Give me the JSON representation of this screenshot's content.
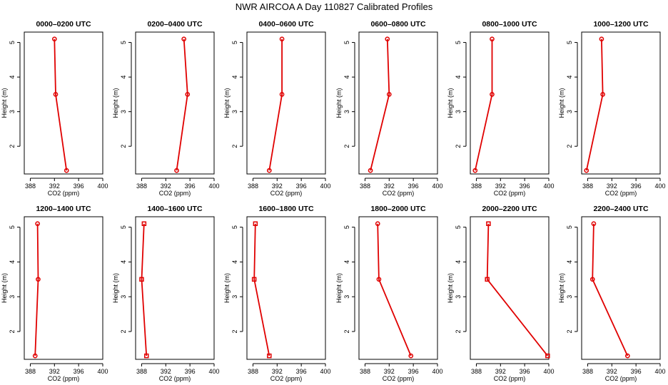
{
  "title": "NWR AIRCOA A   Day 110827   Calibrated Profiles",
  "colors": {
    "series": "#e00000",
    "axis": "#000000"
  },
  "chart_data": [
    {
      "type": "line",
      "title": "0000–0200 UTC",
      "xlabel": "CO2 (ppm)",
      "ylabel": "Height (m)",
      "xlim": [
        387,
        400
      ],
      "ylim": [
        1.2,
        5.3
      ],
      "xticks": [
        388,
        392,
        396,
        400
      ],
      "yticks": [
        2,
        3,
        4,
        5
      ],
      "marker": "circle",
      "x": [
        394.0,
        392.2,
        392.0
      ],
      "y": [
        1.3,
        3.5,
        5.1
      ]
    },
    {
      "type": "line",
      "title": "0200–0400 UTC",
      "xlabel": "CO2 (ppm)",
      "ylabel": "Height (m)",
      "xlim": [
        387,
        400
      ],
      "ylim": [
        1.2,
        5.3
      ],
      "xticks": [
        388,
        392,
        396,
        400
      ],
      "yticks": [
        2,
        3,
        4,
        5
      ],
      "marker": "circle",
      "x": [
        393.8,
        395.6,
        395.0
      ],
      "y": [
        1.3,
        3.5,
        5.1
      ]
    },
    {
      "type": "line",
      "title": "0400–0600 UTC",
      "xlabel": "CO2 (ppm)",
      "ylabel": "Height (m)",
      "xlim": [
        387,
        400
      ],
      "ylim": [
        1.2,
        5.3
      ],
      "xticks": [
        388,
        392,
        396,
        400
      ],
      "yticks": [
        2,
        3,
        4,
        5
      ],
      "marker": "circle",
      "x": [
        390.7,
        392.8,
        392.8
      ],
      "y": [
        1.3,
        3.5,
        5.1
      ]
    },
    {
      "type": "line",
      "title": "0600–0800 UTC",
      "xlabel": "CO2 (ppm)",
      "ylabel": "Height (m)",
      "xlim": [
        387,
        400
      ],
      "ylim": [
        1.2,
        5.3
      ],
      "xticks": [
        388,
        392,
        396,
        400
      ],
      "yticks": [
        2,
        3,
        4,
        5
      ],
      "marker": "circle",
      "x": [
        388.9,
        392.0,
        391.7
      ],
      "y": [
        1.3,
        3.5,
        5.1
      ]
    },
    {
      "type": "line",
      "title": "0800–1000 UTC",
      "xlabel": "CO2 (ppm)",
      "ylabel": "Height (m)",
      "xlim": [
        387,
        400
      ],
      "ylim": [
        1.2,
        5.3
      ],
      "xticks": [
        388,
        392,
        396,
        400
      ],
      "yticks": [
        2,
        3,
        4,
        5
      ],
      "marker": "circle",
      "x": [
        387.8,
        390.6,
        390.6
      ],
      "y": [
        1.3,
        3.5,
        5.1
      ]
    },
    {
      "type": "line",
      "title": "1000–1200 UTC",
      "xlabel": "CO2 (ppm)",
      "ylabel": "Height (m)",
      "xlim": [
        387,
        400
      ],
      "ylim": [
        1.2,
        5.3
      ],
      "xticks": [
        388,
        392,
        396,
        400
      ],
      "yticks": [
        2,
        3,
        4,
        5
      ],
      "marker": "circle",
      "x": [
        387.8,
        390.5,
        390.3
      ],
      "y": [
        1.3,
        3.5,
        5.1
      ]
    },
    {
      "type": "line",
      "title": "1200–1400 UTC",
      "xlabel": "CO2 (ppm)",
      "ylabel": "Height (m)",
      "xlim": [
        387,
        400
      ],
      "ylim": [
        1.2,
        5.3
      ],
      "xticks": [
        388,
        392,
        396,
        400
      ],
      "yticks": [
        2,
        3,
        4,
        5
      ],
      "marker": "circle",
      "x": [
        388.8,
        389.3,
        389.2
      ],
      "y": [
        1.3,
        3.5,
        5.1
      ]
    },
    {
      "type": "line",
      "title": "1400–1600 UTC",
      "xlabel": "CO2 (ppm)",
      "ylabel": "Height (m)",
      "xlim": [
        387,
        400
      ],
      "ylim": [
        1.2,
        5.3
      ],
      "xticks": [
        388,
        392,
        396,
        400
      ],
      "yticks": [
        2,
        3,
        4,
        5
      ],
      "marker": "square",
      "x": [
        388.8,
        388.0,
        388.4
      ],
      "y": [
        1.3,
        3.5,
        5.1
      ]
    },
    {
      "type": "line",
      "title": "1600–1800 UTC",
      "xlabel": "CO2 (ppm)",
      "ylabel": "Height (m)",
      "xlim": [
        387,
        400
      ],
      "ylim": [
        1.2,
        5.3
      ],
      "xticks": [
        388,
        392,
        396,
        400
      ],
      "yticks": [
        2,
        3,
        4,
        5
      ],
      "marker": "square",
      "x": [
        390.7,
        388.2,
        388.4
      ],
      "y": [
        1.3,
        3.5,
        5.1
      ]
    },
    {
      "type": "line",
      "title": "1800–2000 UTC",
      "xlabel": "CO2 (ppm)",
      "ylabel": "Height (m)",
      "xlim": [
        387,
        400
      ],
      "ylim": [
        1.2,
        5.3
      ],
      "xticks": [
        388,
        392,
        396,
        400
      ],
      "yticks": [
        2,
        3,
        4,
        5
      ],
      "marker": "circle",
      "x": [
        395.6,
        390.3,
        390.1
      ],
      "y": [
        1.3,
        3.5,
        5.1
      ]
    },
    {
      "type": "line",
      "title": "2000–2200 UTC",
      "xlabel": "CO2 (ppm)",
      "ylabel": "Height (m)",
      "xlim": [
        387,
        400
      ],
      "ylim": [
        1.2,
        5.3
      ],
      "xticks": [
        388,
        392,
        396,
        400
      ],
      "yticks": [
        2,
        3,
        4,
        5
      ],
      "marker": "square",
      "x": [
        399.8,
        389.8,
        390.0
      ],
      "y": [
        1.3,
        3.5,
        5.1
      ]
    },
    {
      "type": "line",
      "title": "2200–2400 UTC",
      "xlabel": "CO2 (ppm)",
      "ylabel": "Height (m)",
      "xlim": [
        387,
        400
      ],
      "ylim": [
        1.2,
        5.3
      ],
      "xticks": [
        388,
        392,
        396,
        400
      ],
      "yticks": [
        2,
        3,
        4,
        5
      ],
      "marker": "circle",
      "x": [
        394.6,
        388.8,
        389.0
      ],
      "y": [
        1.3,
        3.5,
        5.1
      ]
    }
  ]
}
